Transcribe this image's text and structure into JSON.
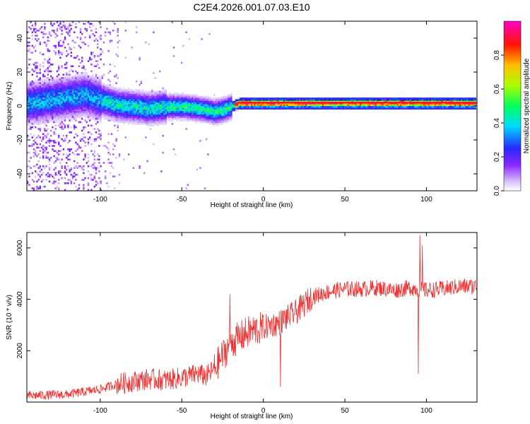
{
  "title": "C2E4.2026.001.07.03.E10",
  "chart_data": [
    {
      "type": "heatmap",
      "title": "C2E4.2026.001.07.03.E10",
      "xlabel": "Height of straight line (km)",
      "ylabel": "Frequency (Hz)",
      "xlim": [
        -145,
        131
      ],
      "ylim": [
        -50,
        50
      ],
      "xticks": [
        "-100",
        "-50",
        "0",
        "50",
        "100"
      ],
      "xtick_values": [
        -100,
        -50,
        0,
        50,
        100
      ],
      "yticks": [
        "-40",
        "-20",
        "0",
        "20",
        "40"
      ],
      "ytick_values": [
        -40,
        -20,
        0,
        20,
        40
      ],
      "colorbar": {
        "label": "Normalized spectral amplitude",
        "range": [
          0,
          1
        ],
        "ticks": [
          "0.0",
          "0.2",
          "0.4",
          "0.6",
          "0.8"
        ],
        "tick_values": [
          0.0,
          0.2,
          0.4,
          0.6,
          0.8
        ],
        "colormap": "rainbow (white-violet-blue-cyan-green-yellow-red-magenta)"
      },
      "ridge_frequency": {
        "x": [
          -145,
          -115,
          -110,
          -100,
          -90,
          -80,
          -70,
          -60,
          -50,
          -40,
          -30,
          -25,
          -20,
          -15,
          0,
          50,
          100,
          131
        ],
        "y": [
          2,
          6,
          7,
          4,
          1,
          0,
          -1,
          0,
          0,
          -1,
          -3,
          -2,
          0,
          2,
          2,
          2,
          2,
          2
        ]
      },
      "grid": false
    },
    {
      "type": "line",
      "xlabel": "Height of straight line (km)",
      "ylabel": "SNR (10 * v/v)",
      "xlim": [
        -145,
        131
      ],
      "ylim": [
        0,
        6600
      ],
      "xticks": [
        "-100",
        "-50",
        "0",
        "50",
        "100"
      ],
      "xtick_values": [
        -100,
        -50,
        0,
        50,
        100
      ],
      "yticks": [
        "2000",
        "4000",
        "6000"
      ],
      "ytick_values": [
        2000,
        4000,
        6000
      ],
      "color": "#f03030",
      "series_envelope": {
        "x": [
          -145,
          -120,
          -100,
          -90,
          -80,
          -70,
          -60,
          -50,
          -40,
          -35,
          -30,
          -25,
          -20,
          -15,
          -10,
          0,
          10,
          20,
          30,
          40,
          50,
          60,
          70,
          80,
          90,
          95,
          100,
          110,
          120,
          131
        ],
        "y": [
          250,
          300,
          500,
          700,
          800,
          900,
          850,
          950,
          1100,
          1000,
          1300,
          1800,
          2300,
          2500,
          2700,
          2900,
          3100,
          3500,
          4100,
          4300,
          4400,
          4400,
          4450,
          4350,
          4450,
          4400,
          4350,
          4400,
          4500,
          4500
        ]
      },
      "spikes": [
        {
          "x": -20.5,
          "y": 4200
        },
        {
          "x": 10.5,
          "y": 600
        },
        {
          "x": 95,
          "y": 1100
        },
        {
          "x": 96,
          "y": 6500
        },
        {
          "x": 97.5,
          "y": 6100
        }
      ],
      "grid": false
    }
  ]
}
